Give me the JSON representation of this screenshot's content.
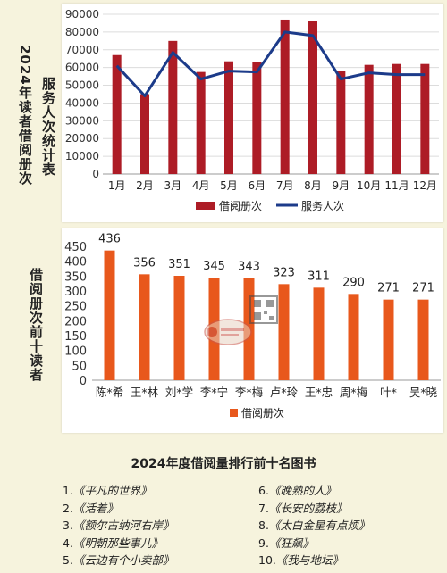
{
  "chart_data": [
    {
      "type": "bar",
      "title": "服务人次统计表",
      "side_title": "2024年读者借阅册次",
      "categories": [
        "1月",
        "2月",
        "3月",
        "4月",
        "5月",
        "6月",
        "7月",
        "8月",
        "9月",
        "10月",
        "11月",
        "12月"
      ],
      "series": [
        {
          "name": "借阅册次",
          "type": "bar",
          "color": "#ad1c26",
          "values": [
            67000,
            45000,
            75000,
            57500,
            63500,
            63000,
            87000,
            86000,
            58000,
            61500,
            62000,
            62000
          ]
        },
        {
          "name": "服务人次",
          "type": "line",
          "color": "#1c3b8a",
          "values": [
            61000,
            44000,
            68500,
            53500,
            58000,
            57500,
            80000,
            78000,
            53500,
            57000,
            56000,
            56000
          ]
        }
      ],
      "yticks": [
        "0",
        "10000",
        "20000",
        "30000",
        "40000",
        "50000",
        "60000",
        "70000",
        "80000",
        "90000"
      ],
      "ylim": [
        0,
        90000
      ],
      "legend_position": "bottom"
    },
    {
      "type": "bar",
      "title": "借阅册次前十读者",
      "categories": [
        "陈*希",
        "王*林",
        "刘*学",
        "李*宁",
        "李*梅",
        "卢*玲",
        "王*忠",
        "周*梅",
        "叶*",
        "吴*晓"
      ],
      "series": [
        {
          "name": "借阅册次",
          "color": "#e8581c",
          "values": [
            436,
            356,
            351,
            345,
            343,
            323,
            311,
            290,
            271,
            271
          ]
        }
      ],
      "data_labels": [
        "436",
        "356",
        "351",
        "345",
        "343",
        "323",
        "311",
        "290",
        "271",
        "271"
      ],
      "yticks": [
        "0",
        "50",
        "100",
        "150",
        "200",
        "250",
        "300",
        "350",
        "400",
        "450"
      ],
      "ylim": [
        0,
        450
      ],
      "legend_position": "bottom"
    }
  ],
  "books": {
    "title": "2024年度借阅量排行前十名图书",
    "left": [
      {
        "num": "1.",
        "name": "《平凡的世界》"
      },
      {
        "num": "2.",
        "name": "《活着》"
      },
      {
        "num": "3.",
        "name": "《额尔古纳河右岸》"
      },
      {
        "num": "4.",
        "name": "《明朝那些事儿》"
      },
      {
        "num": "5.",
        "name": "《云边有个小卖部》"
      }
    ],
    "right": [
      {
        "num": "6.",
        "name": "《晚熟的人》"
      },
      {
        "num": "7.",
        "name": "《长安的荔枝》"
      },
      {
        "num": "8.",
        "name": "《太白金星有点烦》"
      },
      {
        "num": "9.",
        "name": "《狂飙》"
      },
      {
        "num": "10.",
        "name": "《我与地坛》"
      }
    ]
  }
}
